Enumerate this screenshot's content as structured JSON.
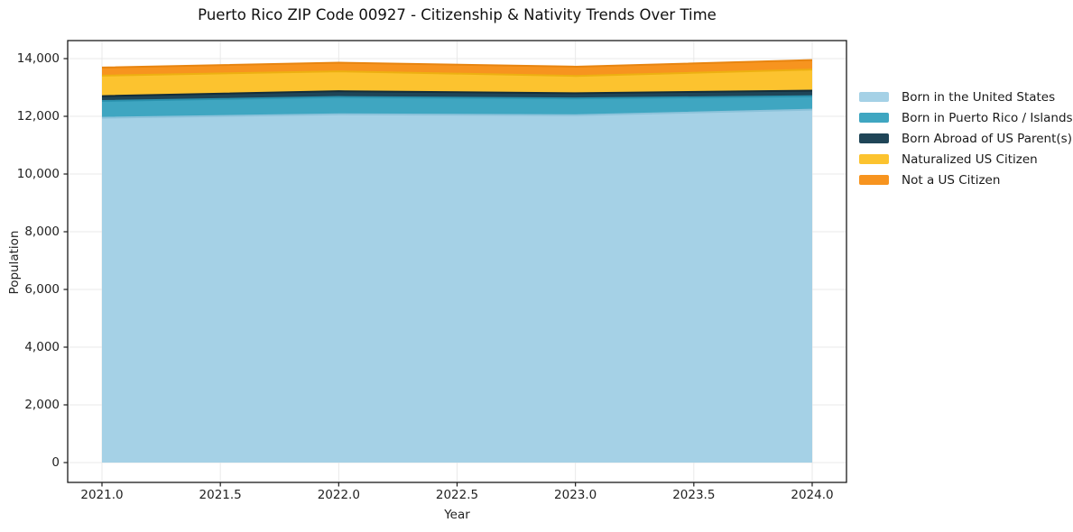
{
  "title": "Puerto Rico ZIP Code 00927 - Citizenship & Nativity Trends Over Time",
  "axes": {
    "xlabel": "Year",
    "ylabel": "Population",
    "xtick_labels": [
      "2021.0",
      "2021.5",
      "2022.0",
      "2022.5",
      "2023.0",
      "2023.5",
      "2024.0"
    ],
    "ytick_labels": [
      "0",
      "2,000",
      "4,000",
      "6,000",
      "8,000",
      "10,000",
      "12,000",
      "14,000"
    ],
    "grid": true,
    "grid_color": "#e9e9e9"
  },
  "legend": {
    "position": "outside-right",
    "frame": false
  },
  "chart_data": {
    "type": "area",
    "stacked": true,
    "x": [
      2021,
      2022,
      2023,
      2024
    ],
    "series": [
      {
        "name": "Born in the United States",
        "color": "#a5d1e6",
        "edge": "#8cc2da",
        "values": [
          11950,
          12070,
          12040,
          12230
        ]
      },
      {
        "name": "Born in Puerto Rico / Islands",
        "color": "#3fa6c1",
        "edge": "#2a92ae",
        "values": [
          580,
          600,
          580,
          470
        ]
      },
      {
        "name": "Born Abroad of US Parent(s)",
        "color": "#1f4557",
        "edge": "#132d3a",
        "values": [
          170,
          200,
          180,
          190
        ]
      },
      {
        "name": "Naturalized US Citizen",
        "color": "#fcc32f",
        "edge": "#edb011",
        "values": [
          710,
          690,
          600,
          730
        ]
      },
      {
        "name": "Not a US Citizen",
        "color": "#f7941f",
        "edge": "#e88510",
        "values": [
          280,
          300,
          320,
          330
        ]
      }
    ],
    "title": "Puerto Rico ZIP Code 00927 - Citizenship & Nativity Trends Over Time",
    "xlabel": "Year",
    "ylabel": "Population",
    "xlim": [
      2021,
      2024
    ],
    "ylim": [
      0,
      14000
    ],
    "ytick_step": 2000,
    "xtick_step": 0.5,
    "legend_entries": [
      "Born in the United States",
      "Born in Puerto Rico / Islands",
      "Born Abroad of US Parent(s)",
      "Naturalized US Citizen",
      "Not a US Citizen"
    ]
  }
}
